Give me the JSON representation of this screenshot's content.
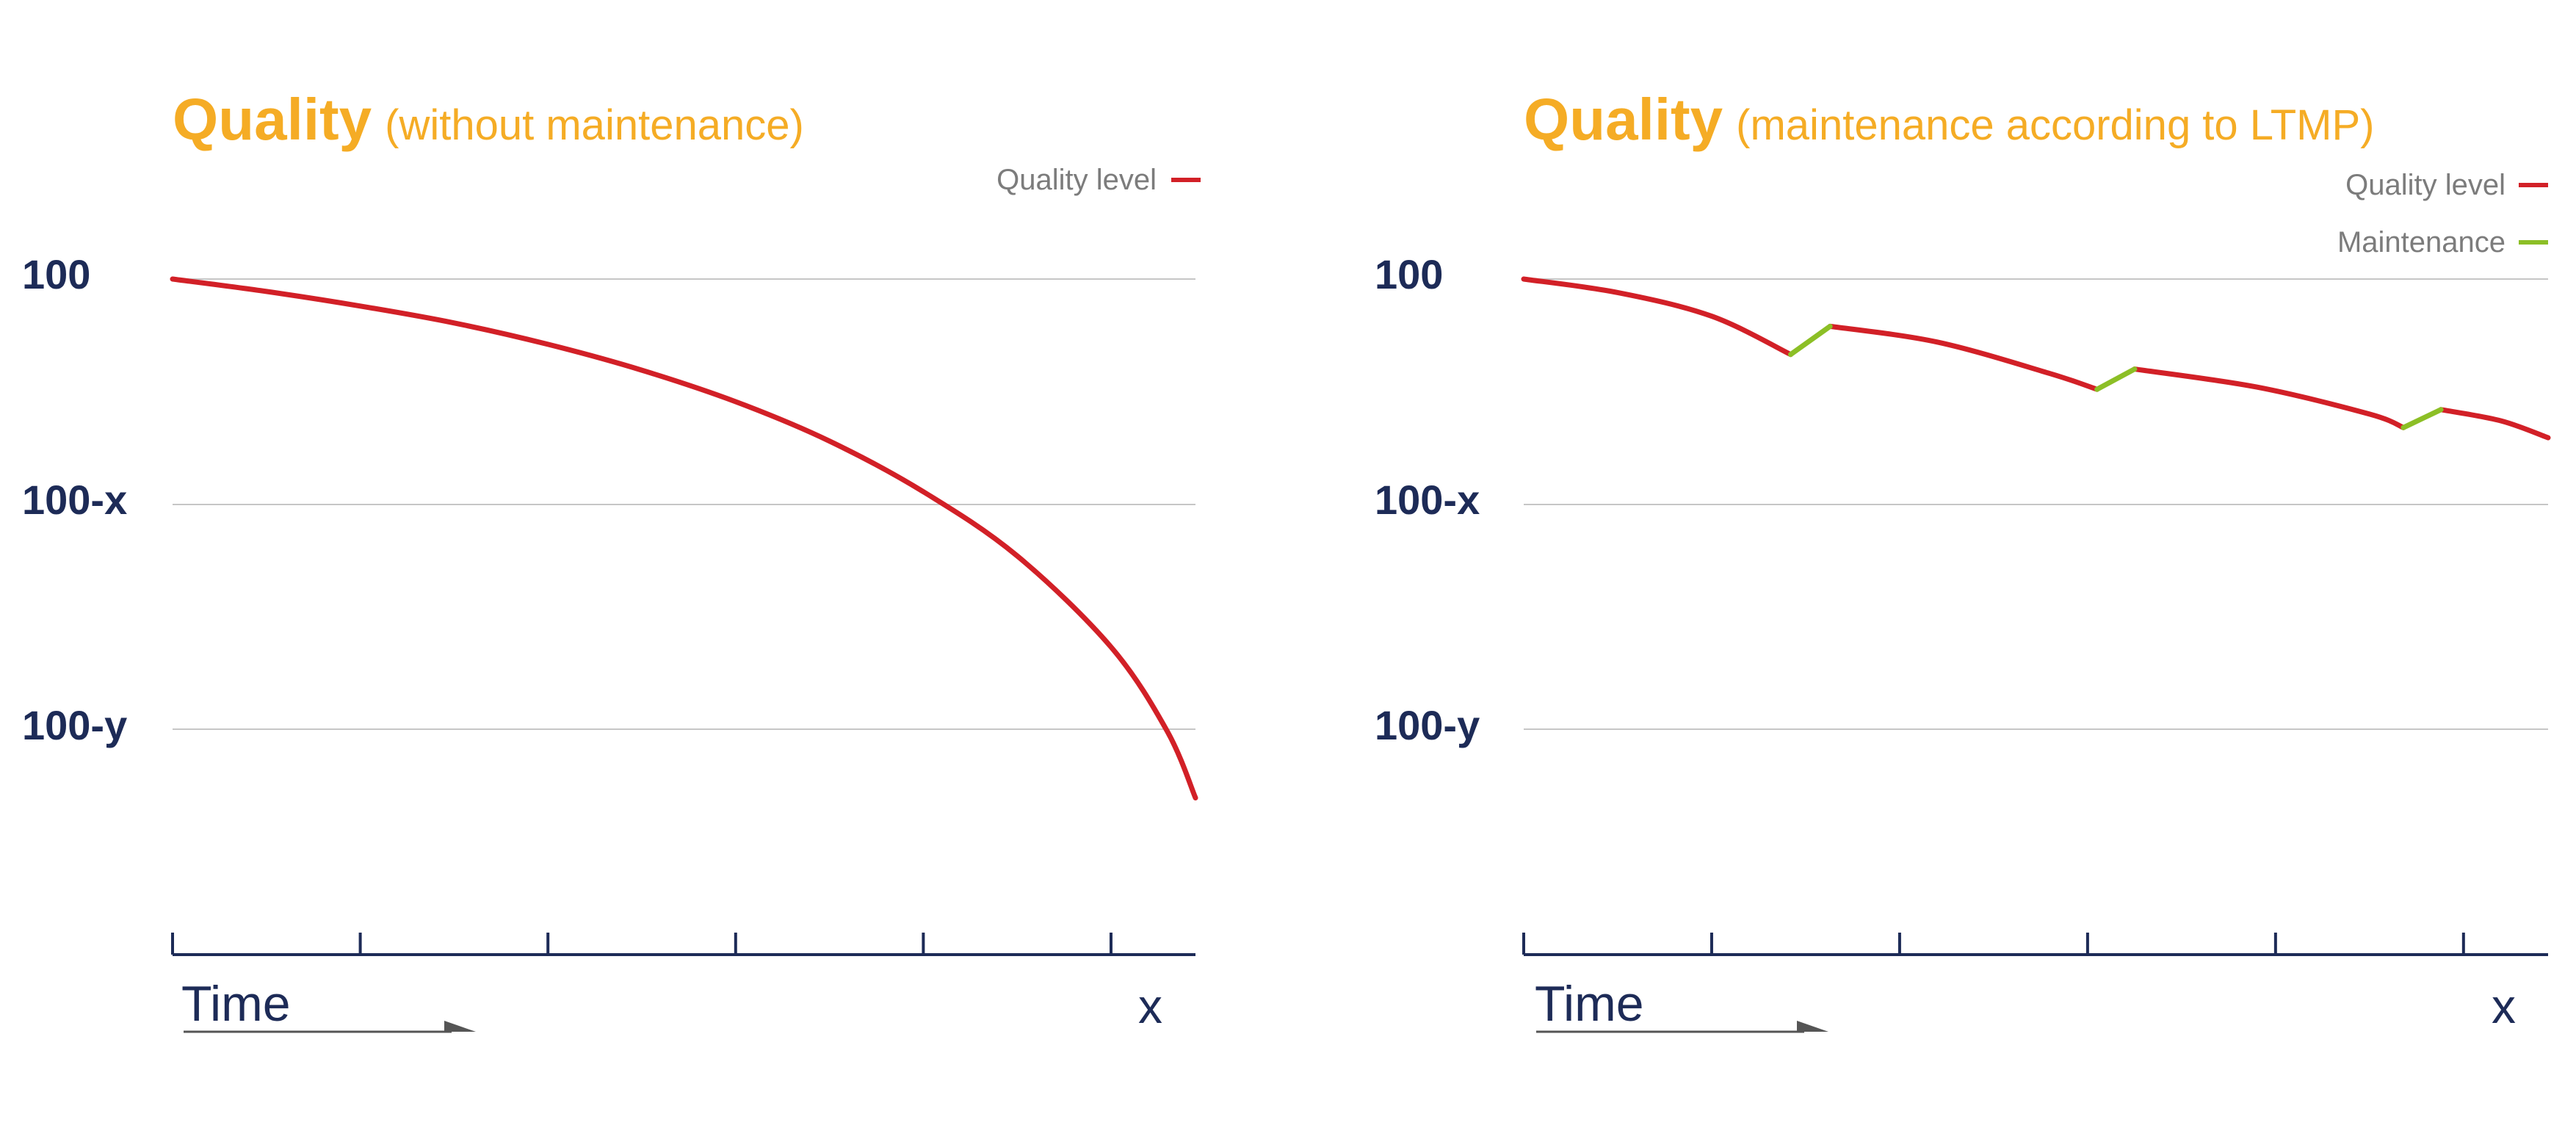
{
  "colors": {
    "quality_line": "#d22027",
    "maintenance_line": "#8cbf26",
    "title": "#f5ac25",
    "axis_text": "#1d2b57",
    "legend_text": "#7c7c7c",
    "gridline": "#c6c6c6"
  },
  "chart_data": [
    {
      "type": "line",
      "title": "Quality",
      "subtitle": "(without maintenance)",
      "xlabel": "Time",
      "x_end_label": "x",
      "ytick_labels": [
        "100",
        "100-x",
        "100-y"
      ],
      "ytick_values": [
        100,
        80,
        60
      ],
      "ylim": [
        52,
        100
      ],
      "xlim": [
        0,
        5.45
      ],
      "x_ticks": [
        0,
        1,
        2,
        3,
        4,
        5
      ],
      "grid": true,
      "legend": {
        "placement": "top-right",
        "entries": [
          {
            "label": "Quality level",
            "color": "#d22027"
          }
        ]
      },
      "series": [
        {
          "name": "Quality level",
          "color": "#d22027",
          "x": [
            0,
            0.5,
            1,
            1.5,
            2,
            2.5,
            3,
            3.5,
            4,
            4.5,
            5,
            5.3,
            5.45
          ],
          "y": [
            100,
            98.9,
            97.6,
            96.1,
            94.2,
            91.9,
            89.1,
            85.6,
            81.1,
            75.4,
            67.3,
            59.8,
            53.9
          ]
        }
      ]
    },
    {
      "type": "line",
      "title": "Quality",
      "subtitle": "(maintenance according to LTMP)",
      "xlabel": "Time",
      "x_end_label": "x",
      "ytick_labels": [
        "100",
        "100-x",
        "100-y"
      ],
      "ytick_values": [
        100,
        80,
        60
      ],
      "ylim": [
        52,
        100
      ],
      "xlim": [
        0,
        5.45
      ],
      "x_ticks": [
        0,
        1,
        2,
        3,
        4,
        5
      ],
      "grid": true,
      "legend": {
        "placement": "top-right",
        "entries": [
          {
            "label": "Quality level",
            "color": "#d22027"
          },
          {
            "label": "Maintenance",
            "color": "#8cbf26"
          }
        ]
      },
      "series": [
        {
          "name": "Quality level",
          "color": "#d22027",
          "segments": [
            {
              "x": [
                0,
                0.5,
                1.0,
                1.42
              ],
              "y": [
                100,
                98.8,
                96.7,
                93.3
              ]
            },
            {
              "x": [
                1.63,
                2.2,
                2.8,
                3.05
              ],
              "y": [
                95.8,
                94.4,
                91.6,
                90.2
              ]
            },
            {
              "x": [
                3.25,
                3.9,
                4.5,
                4.68
              ],
              "y": [
                92.0,
                90.4,
                88.0,
                86.8
              ]
            },
            {
              "x": [
                4.88,
                5.2,
                5.45
              ],
              "y": [
                88.4,
                87.4,
                85.9
              ]
            }
          ]
        },
        {
          "name": "Maintenance",
          "color": "#8cbf26",
          "segments": [
            {
              "x": [
                1.42,
                1.63
              ],
              "y": [
                93.3,
                95.8
              ]
            },
            {
              "x": [
                3.05,
                3.25
              ],
              "y": [
                90.2,
                92.0
              ]
            },
            {
              "x": [
                4.68,
                4.88
              ],
              "y": [
                86.8,
                88.4
              ]
            }
          ]
        }
      ]
    }
  ]
}
